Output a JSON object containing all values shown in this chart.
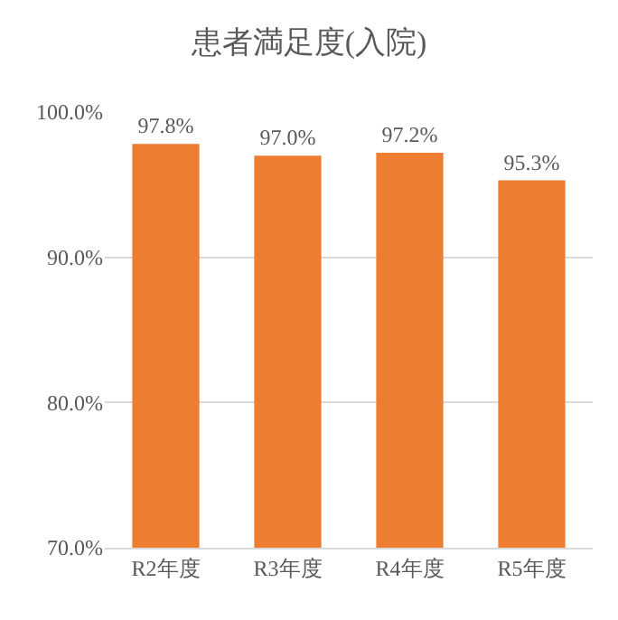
{
  "chart_data": {
    "type": "bar",
    "title": "患者満足度(入院)",
    "categories": [
      "R2年度",
      "R3年度",
      "R4年度",
      "R5年度"
    ],
    "values": [
      97.8,
      97.0,
      97.2,
      95.3
    ],
    "value_labels": [
      "97.8%",
      "97.0%",
      "97.2%",
      "95.3%"
    ],
    "color": "#ed7d31",
    "ylim": [
      70,
      100
    ],
    "yticks": [
      {
        "value": 70,
        "label": "70.0%"
      },
      {
        "value": 80,
        "label": "80.0%"
      },
      {
        "value": 90,
        "label": "90.0%"
      },
      {
        "value": 100,
        "label": "100.0%"
      }
    ],
    "grid": "y"
  }
}
